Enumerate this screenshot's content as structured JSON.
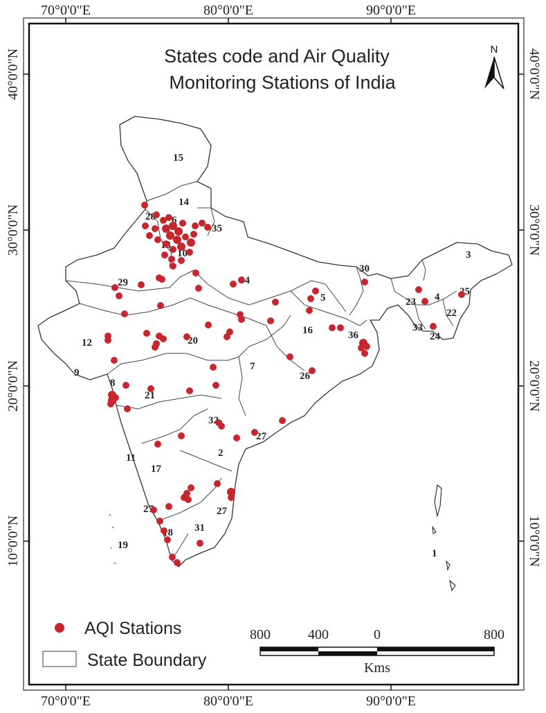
{
  "title_line1": "States code and Air Quality",
  "title_line2": "Monitoring Stations of India",
  "north_label": "N",
  "lon_labels": [
    "70°0'0\"E",
    "80°0'0\"E",
    "90°0'0\"E"
  ],
  "lat_labels": [
    "40°0'0\"N",
    "30°0'0\"N",
    "20°0'0\"N",
    "10°0'0\"N"
  ],
  "state_codes": [
    "15",
    "14",
    "28",
    "6",
    "35",
    "13",
    "10",
    "29",
    "34",
    "30",
    "3",
    "5",
    "23",
    "4",
    "25",
    "22",
    "16",
    "33",
    "24",
    "36",
    "12",
    "20",
    "7",
    "26",
    "9",
    "8",
    "21",
    "32",
    "27",
    "2",
    "11",
    "17",
    "27",
    "27",
    "31",
    "18",
    "19",
    "1"
  ],
  "legend": {
    "stations_label": "AQI Stations",
    "boundary_label": "State Boundary"
  },
  "scale": {
    "ticks": [
      "800",
      "400",
      "0",
      "800"
    ],
    "unit": "Kms"
  },
  "colors": {
    "station": "#c8262c",
    "boundary": "#333333"
  }
}
